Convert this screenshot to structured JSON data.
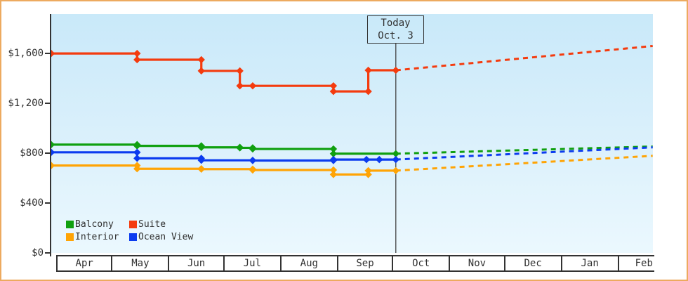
{
  "window": {
    "border_color": "#edaa5f",
    "background": "#ffffff"
  },
  "today_flag": {
    "line1": "Today",
    "line2": "Oct. 3"
  },
  "y_axis": {
    "labels": [
      {
        "text": "$1,600",
        "value": 1600
      },
      {
        "text": "$1,200",
        "value": 1200
      },
      {
        "text": "$800",
        "value": 800
      },
      {
        "text": "$400",
        "value": 400
      },
      {
        "text": "$0",
        "value": 0
      }
    ]
  },
  "x_axis": {
    "months": [
      {
        "label": "Apr",
        "days": 30
      },
      {
        "label": "May",
        "days": 31
      },
      {
        "label": "Jun",
        "days": 30
      },
      {
        "label": "Jul",
        "days": 31
      },
      {
        "label": "Aug",
        "days": 31
      },
      {
        "label": "Sep",
        "days": 30
      },
      {
        "label": "Oct",
        "days": 31
      },
      {
        "label": "Nov",
        "days": 30
      },
      {
        "label": "Dec",
        "days": 31
      },
      {
        "label": "Jan",
        "days": 31
      },
      {
        "label": "Feb",
        "days": 28
      }
    ]
  },
  "legend": [
    {
      "label": "Balcony",
      "color": "#10a010"
    },
    {
      "label": "Suite",
      "color": "#f43b0e"
    },
    {
      "label": "Interior",
      "color": "#ffa405"
    },
    {
      "label": "Ocean View",
      "color": "#0b3bef"
    }
  ],
  "chart_data": {
    "type": "line",
    "style": "step-after price history with dashed forecast",
    "x_unit": "days since Apr 1",
    "today_day": 185,
    "today_label": "Oct. 3",
    "y_range": [
      0,
      1920
    ],
    "y_ticks": [
      0,
      400,
      800,
      1200,
      1600
    ],
    "grid": false,
    "legend_position": "bottom-left inside plot",
    "series": [
      {
        "name": "Suite",
        "color": "#f43b0e",
        "points": [
          {
            "d": 0,
            "v": 1600
          },
          {
            "d": 44,
            "v": 1550
          },
          {
            "d": 79,
            "v": 1460
          },
          {
            "d": 100,
            "v": 1340
          },
          {
            "d": 107,
            "v": 1340
          },
          {
            "d": 151,
            "v": 1295
          },
          {
            "d": 170,
            "v": 1465
          },
          {
            "d": 185,
            "v": 1465
          }
        ],
        "forecast": {
          "d": 325,
          "v": 1660
        }
      },
      {
        "name": "Balcony",
        "color": "#10a010",
        "points": [
          {
            "d": 0,
            "v": 868
          },
          {
            "d": 44,
            "v": 858
          },
          {
            "d": 79,
            "v": 846
          },
          {
            "d": 100,
            "v": 842
          },
          {
            "d": 107,
            "v": 833
          },
          {
            "d": 151,
            "v": 795
          },
          {
            "d": 185,
            "v": 795
          }
        ],
        "forecast": {
          "d": 325,
          "v": 853
        }
      },
      {
        "name": "Ocean View",
        "color": "#0b3bef",
        "points": [
          {
            "d": 0,
            "v": 806
          },
          {
            "d": 44,
            "v": 758
          },
          {
            "d": 79,
            "v": 742
          },
          {
            "d": 107,
            "v": 740
          },
          {
            "d": 151,
            "v": 748
          },
          {
            "d": 169,
            "v": 748
          },
          {
            "d": 176,
            "v": 748
          },
          {
            "d": 185,
            "v": 748
          }
        ],
        "forecast": {
          "d": 325,
          "v": 846
        }
      },
      {
        "name": "Interior",
        "color": "#ffa405",
        "points": [
          {
            "d": 0,
            "v": 700
          },
          {
            "d": 44,
            "v": 674
          },
          {
            "d": 79,
            "v": 671
          },
          {
            "d": 107,
            "v": 664
          },
          {
            "d": 151,
            "v": 628
          },
          {
            "d": 170,
            "v": 659
          },
          {
            "d": 185,
            "v": 659
          }
        ],
        "forecast": {
          "d": 325,
          "v": 778
        }
      }
    ]
  }
}
